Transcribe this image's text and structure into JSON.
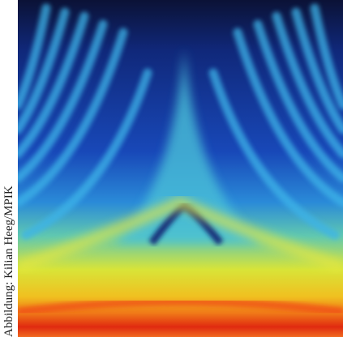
{
  "image": {
    "credit": "Abbildung: Kilian Heeg/MPIK"
  }
}
